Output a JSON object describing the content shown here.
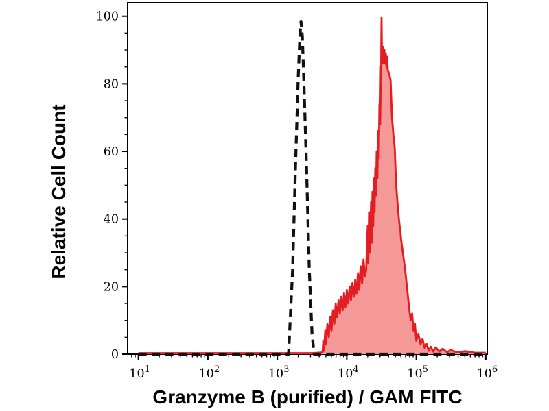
{
  "figure": {
    "background": "#ffffff",
    "axis_color": "#000000",
    "text_color": "#000000"
  },
  "chart_data": {
    "type": "area",
    "subtype": "flow-cytometry-overlay-histogram",
    "title": "",
    "xlabel": "Granzyme B (purified) / GAM FITC",
    "ylabel": "Relative Cell Count",
    "x_scale": "log",
    "x_range": [
      7,
      1050000
    ],
    "y_range": [
      0,
      104
    ],
    "y_ticks": [
      0,
      20,
      40,
      60,
      80,
      100
    ],
    "y_tick_step": 20,
    "y_minor_step": 5,
    "x_tick_base": "10",
    "x_tick_exponents": [
      1,
      2,
      3,
      4,
      5,
      6
    ],
    "x_minor_multipliers": [
      2,
      3,
      4,
      5,
      6,
      7,
      8,
      9
    ],
    "grid": false,
    "legend": "none",
    "series": [
      {
        "id": "red-sample-histogram",
        "name": "stained sample (red filled)",
        "style": "solid",
        "color": "#e31e23",
        "fill": "#f59898",
        "stroke_width": 2.8,
        "points": [
          [
            10,
            0.3
          ],
          [
            3200,
            0.3
          ],
          [
            4470,
            0.5
          ],
          [
            4600,
            4
          ],
          [
            4700,
            1
          ],
          [
            4900,
            7
          ],
          [
            5000,
            3
          ],
          [
            5250,
            9
          ],
          [
            5500,
            5
          ],
          [
            5750,
            11
          ],
          [
            6030,
            7
          ],
          [
            6310,
            13
          ],
          [
            6610,
            9
          ],
          [
            6920,
            15
          ],
          [
            7240,
            11
          ],
          [
            7590,
            16
          ],
          [
            7940,
            12
          ],
          [
            8320,
            17
          ],
          [
            8710,
            13
          ],
          [
            9120,
            18
          ],
          [
            9550,
            14
          ],
          [
            10000,
            19
          ],
          [
            10500,
            15
          ],
          [
            11000,
            20
          ],
          [
            11500,
            16
          ],
          [
            12000,
            21
          ],
          [
            12600,
            17
          ],
          [
            13200,
            22
          ],
          [
            13800,
            18
          ],
          [
            14500,
            24
          ],
          [
            15100,
            19
          ],
          [
            15800,
            26
          ],
          [
            16600,
            21
          ],
          [
            17400,
            28
          ],
          [
            18200,
            23
          ],
          [
            19000,
            25
          ],
          [
            19500,
            32
          ],
          [
            20000,
            38
          ],
          [
            20400,
            27
          ],
          [
            20900,
            42
          ],
          [
            21400,
            30
          ],
          [
            22400,
            45
          ],
          [
            22900,
            33
          ],
          [
            23400,
            48
          ],
          [
            24000,
            38
          ],
          [
            24500,
            52
          ],
          [
            25100,
            42
          ],
          [
            25700,
            55
          ],
          [
            26300,
            47
          ],
          [
            26900,
            60
          ],
          [
            27500,
            52
          ],
          [
            28200,
            66
          ],
          [
            28800,
            58
          ],
          [
            29500,
            74
          ],
          [
            30200,
            68
          ],
          [
            30900,
            85
          ],
          [
            31100,
            80
          ],
          [
            31300,
            92
          ],
          [
            31600,
            99.5
          ],
          [
            32000,
            90
          ],
          [
            32400,
            86
          ],
          [
            33100,
            91
          ],
          [
            33900,
            86
          ],
          [
            34700,
            90
          ],
          [
            35500,
            86
          ],
          [
            36300,
            89
          ],
          [
            37200,
            85
          ],
          [
            38000,
            88
          ],
          [
            38900,
            84
          ],
          [
            40700,
            83
          ],
          [
            42700,
            81
          ],
          [
            44700,
            70
          ],
          [
            46800,
            65
          ],
          [
            48900,
            61
          ],
          [
            51300,
            50
          ],
          [
            53100,
            46
          ],
          [
            55000,
            42
          ],
          [
            57500,
            38
          ],
          [
            58900,
            37
          ],
          [
            60300,
            34
          ],
          [
            63100,
            31
          ],
          [
            66100,
            28
          ],
          [
            69200,
            25
          ],
          [
            72400,
            21
          ],
          [
            75900,
            17
          ],
          [
            79400,
            13
          ],
          [
            83200,
            10
          ],
          [
            87100,
            12
          ],
          [
            91200,
            7
          ],
          [
            95500,
            9
          ],
          [
            100000,
            4
          ],
          [
            107000,
            6
          ],
          [
            115000,
            3
          ],
          [
            123000,
            4.5
          ],
          [
            132000,
            1.8
          ],
          [
            141000,
            3
          ],
          [
            151000,
            1
          ],
          [
            162000,
            2.2
          ],
          [
            174000,
            0.8
          ],
          [
            191000,
            2
          ],
          [
            214000,
            0.8
          ],
          [
            240000,
            1.6
          ],
          [
            275000,
            0.6
          ],
          [
            316000,
            1.2
          ],
          [
            389000,
            0.5
          ],
          [
            500000,
            0.9
          ],
          [
            700000,
            0.4
          ],
          [
            1000000,
            0.4
          ]
        ]
      },
      {
        "id": "dashed-control-histogram",
        "name": "negative control (black dashed)",
        "style": "dashed",
        "color": "#111111",
        "fill": "none",
        "stroke_width": 4.2,
        "dash": "12 7.5",
        "points": [
          [
            10,
            0
          ],
          [
            1450,
            0
          ],
          [
            1660,
            25
          ],
          [
            1820,
            55
          ],
          [
            2000,
            82
          ],
          [
            2110,
            94
          ],
          [
            2190,
            98.5
          ],
          [
            2290,
            94
          ],
          [
            2400,
            82
          ],
          [
            2630,
            55
          ],
          [
            2880,
            25
          ],
          [
            3160,
            6
          ],
          [
            3390,
            0
          ],
          [
            1000000,
            0
          ]
        ]
      }
    ]
  }
}
